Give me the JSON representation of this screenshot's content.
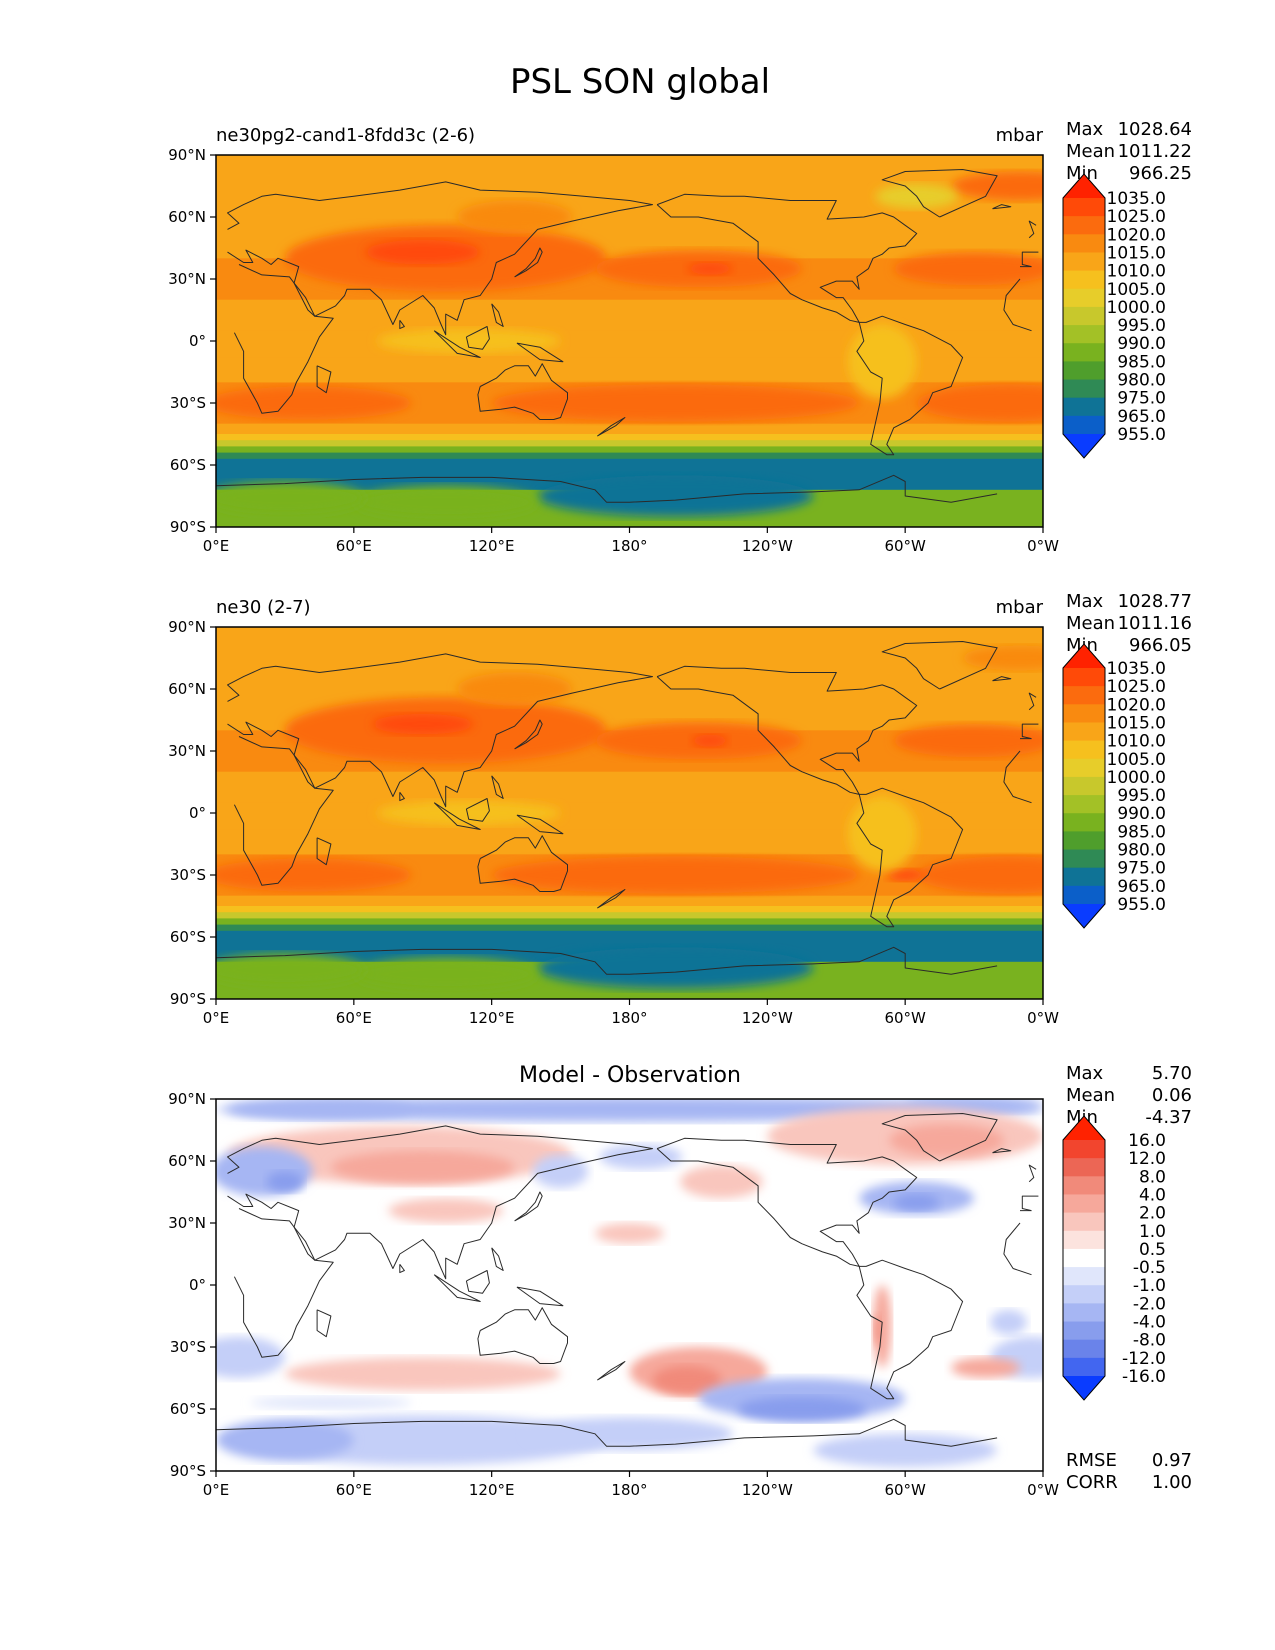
{
  "figure": {
    "title": "PSL SON global"
  },
  "colors": {
    "frame": "#000000",
    "coast": "#2a2a2a"
  },
  "icons": {
    "colorbar_ends": "triangle-arrow"
  },
  "chart_data": [
    {
      "type": "heatmap",
      "panel": "test",
      "left_title": "ne30pg2-cand1-8fdd3c (2-6)",
      "right_title": "mbar",
      "center_title": "",
      "x_ticks": [
        "0°E",
        "60°E",
        "120°E",
        "180°",
        "120°W",
        "60°W",
        "0°W"
      ],
      "y_ticks": [
        "90°N",
        "60°N",
        "30°N",
        "0°",
        "30°S",
        "60°S",
        "90°S"
      ],
      "x_range_deg": [
        0,
        360
      ],
      "y_range_deg": [
        -90,
        90
      ],
      "stats": [
        {
          "label": "Max",
          "value": "1028.64"
        },
        {
          "label": "Mean",
          "value": "1011.22"
        },
        {
          "label": "Min",
          "value": "966.25"
        }
      ],
      "colorbar": {
        "levels": [
          "1035.0",
          "1025.0",
          "1020.0",
          "1015.0",
          "1010.0",
          "1005.0",
          "1000.0",
          "995.0",
          "990.0",
          "985.0",
          "980.0",
          "975.0",
          "965.0",
          "955.0"
        ],
        "colors": [
          "#ff2200",
          "#ff4a08",
          "#fb6b0e",
          "#f98a10",
          "#f9a518",
          "#f6c01e",
          "#e7cd2a",
          "#c8c82c",
          "#a3c126",
          "#79b21f",
          "#4f9e2c",
          "#2f8a55",
          "#0f7396",
          "#0b5fc9",
          "#0a3cff"
        ]
      },
      "field": "psl"
    },
    {
      "type": "heatmap",
      "panel": "reference",
      "left_title": "ne30 (2-7)",
      "right_title": "mbar",
      "center_title": "",
      "x_ticks": [
        "0°E",
        "60°E",
        "120°E",
        "180°",
        "120°W",
        "60°W",
        "0°W"
      ],
      "y_ticks": [
        "90°N",
        "60°N",
        "30°N",
        "0°",
        "30°S",
        "60°S",
        "90°S"
      ],
      "x_range_deg": [
        0,
        360
      ],
      "y_range_deg": [
        -90,
        90
      ],
      "stats": [
        {
          "label": "Max",
          "value": "1028.77"
        },
        {
          "label": "Mean",
          "value": "1011.16"
        },
        {
          "label": "Min",
          "value": "966.05"
        }
      ],
      "colorbar": {
        "levels": [
          "1035.0",
          "1025.0",
          "1020.0",
          "1015.0",
          "1010.0",
          "1005.0",
          "1000.0",
          "995.0",
          "990.0",
          "985.0",
          "980.0",
          "975.0",
          "965.0",
          "955.0"
        ],
        "colors": [
          "#ff2200",
          "#ff4a08",
          "#fb6b0e",
          "#f98a10",
          "#f9a518",
          "#f6c01e",
          "#e7cd2a",
          "#c8c82c",
          "#a3c126",
          "#79b21f",
          "#4f9e2c",
          "#2f8a55",
          "#0f7396",
          "#0b5fc9",
          "#0a3cff"
        ]
      },
      "field": "psl"
    },
    {
      "type": "heatmap",
      "panel": "difference",
      "left_title": "",
      "right_title": "",
      "center_title": "Model - Observation",
      "x_ticks": [
        "0°E",
        "60°E",
        "120°E",
        "180°",
        "120°W",
        "60°W",
        "0°W"
      ],
      "y_ticks": [
        "90°N",
        "60°N",
        "30°N",
        "0°",
        "30°S",
        "60°S",
        "90°S"
      ],
      "x_range_deg": [
        0,
        360
      ],
      "y_range_deg": [
        -90,
        90
      ],
      "stats": [
        {
          "label": "Max",
          "value": "5.70"
        },
        {
          "label": "Mean",
          "value": "0.06"
        },
        {
          "label": "Min",
          "value": "-4.37"
        }
      ],
      "extra_stats": [
        {
          "label": "RMSE",
          "value": "0.97"
        },
        {
          "label": "CORR",
          "value": "1.00"
        }
      ],
      "colorbar": {
        "levels": [
          "16.0",
          "12.0",
          "8.0",
          "4.0",
          "2.0",
          "1.0",
          "0.5",
          "-0.5",
          "-1.0",
          "-2.0",
          "-4.0",
          "-8.0",
          "-12.0",
          "-16.0"
        ],
        "colors": [
          "#ff2200",
          "#f2452e",
          "#ec6655",
          "#f18a7a",
          "#f6a89b",
          "#f9c6bd",
          "#fce3de",
          "#ffffff",
          "#e0e6fb",
          "#c4cff8",
          "#a6b6f3",
          "#889ded",
          "#6a83ea",
          "#4266f0",
          "#0a3cff"
        ]
      },
      "field": "diff"
    }
  ]
}
